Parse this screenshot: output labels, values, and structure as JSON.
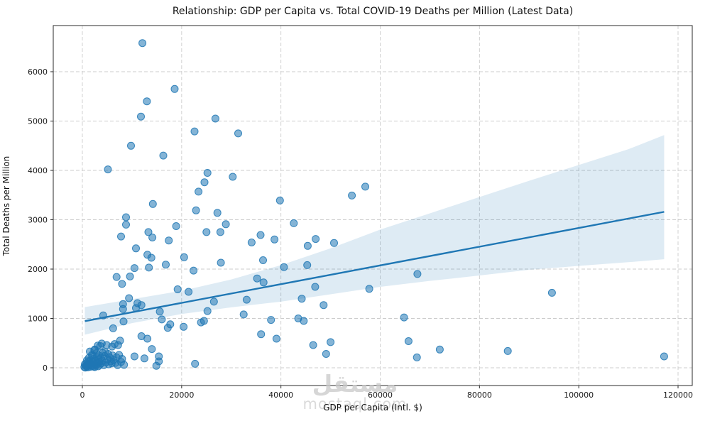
{
  "watermark": {
    "arabic": "مستقل",
    "latin": "mostaql.com"
  },
  "chart_data": {
    "type": "scatter",
    "title": "Relationship: GDP per Capita vs. Total COVID-19 Deaths per Million (Latest Data)",
    "xlabel": "GDP per Capita (Intl. $)",
    "ylabel": "Total Deaths per Million",
    "x_ticks": [
      0,
      20000,
      40000,
      60000,
      80000,
      100000,
      120000
    ],
    "y_ticks": [
      0,
      1000,
      2000,
      3000,
      4000,
      5000,
      6000
    ],
    "xlim": [
      -5900,
      122900
    ],
    "ylim": [
      -360,
      6940
    ],
    "grid": true,
    "legend": "none",
    "colors": {
      "point": "#1f77b4",
      "line": "#1f77b4",
      "band": "#1f77b4",
      "grid": "#cccccc",
      "spine": "#2b2b2b",
      "tick_text": "#1a1a1a"
    },
    "regression": {
      "line": [
        [
          500,
          945
        ],
        [
          117200,
          3160
        ]
      ],
      "band_upper": [
        [
          500,
          1230
        ],
        [
          10000,
          1390
        ],
        [
          20000,
          1560
        ],
        [
          30000,
          1790
        ],
        [
          40000,
          2080
        ],
        [
          50000,
          2420
        ],
        [
          60000,
          2800
        ],
        [
          70000,
          3130
        ],
        [
          80000,
          3460
        ],
        [
          90000,
          3790
        ],
        [
          100000,
          4110
        ],
        [
          110000,
          4430
        ],
        [
          117200,
          4715
        ]
      ],
      "band_lower": [
        [
          500,
          670
        ],
        [
          10000,
          905
        ],
        [
          20000,
          1090
        ],
        [
          30000,
          1225
        ],
        [
          40000,
          1340
        ],
        [
          50000,
          1490
        ],
        [
          60000,
          1640
        ],
        [
          70000,
          1760
        ],
        [
          80000,
          1870
        ],
        [
          90000,
          1985
        ],
        [
          100000,
          2065
        ],
        [
          110000,
          2140
        ],
        [
          117200,
          2200
        ]
      ]
    },
    "points": [
      [
        12100,
        6580
      ],
      [
        18600,
        5650
      ],
      [
        13000,
        5400
      ],
      [
        11800,
        5090
      ],
      [
        26800,
        5050
      ],
      [
        22600,
        4790
      ],
      [
        31400,
        4750
      ],
      [
        9800,
        4500
      ],
      [
        16300,
        4300
      ],
      [
        5150,
        4020
      ],
      [
        25200,
        3950
      ],
      [
        30300,
        3870
      ],
      [
        24600,
        3760
      ],
      [
        23400,
        3570
      ],
      [
        57000,
        3670
      ],
      [
        54300,
        3490
      ],
      [
        39800,
        3390
      ],
      [
        14200,
        3320
      ],
      [
        22900,
        3190
      ],
      [
        27200,
        3140
      ],
      [
        8800,
        3050
      ],
      [
        8800,
        2900
      ],
      [
        18900,
        2870
      ],
      [
        28900,
        2910
      ],
      [
        42600,
        2930
      ],
      [
        13300,
        2750
      ],
      [
        14100,
        2640
      ],
      [
        7800,
        2660
      ],
      [
        25000,
        2750
      ],
      [
        27800,
        2750
      ],
      [
        17400,
        2580
      ],
      [
        10800,
        2420
      ],
      [
        13100,
        2290
      ],
      [
        13900,
        2230
      ],
      [
        34100,
        2540
      ],
      [
        35900,
        2690
      ],
      [
        38700,
        2600
      ],
      [
        47000,
        2610
      ],
      [
        45400,
        2470
      ],
      [
        50700,
        2530
      ],
      [
        20500,
        2240
      ],
      [
        27900,
        2130
      ],
      [
        10500,
        2020
      ],
      [
        13400,
        2030
      ],
      [
        16800,
        2090
      ],
      [
        22400,
        1970
      ],
      [
        36400,
        2180
      ],
      [
        40600,
        2040
      ],
      [
        45300,
        2080
      ],
      [
        6900,
        1840
      ],
      [
        9600,
        1850
      ],
      [
        8000,
        1700
      ],
      [
        35200,
        1810
      ],
      [
        36500,
        1730
      ],
      [
        46900,
        1640
      ],
      [
        57800,
        1600
      ],
      [
        67500,
        1900
      ],
      [
        33100,
        1380
      ],
      [
        44200,
        1400
      ],
      [
        48600,
        1270
      ],
      [
        94600,
        1520
      ],
      [
        64800,
        1020
      ],
      [
        65700,
        540
      ],
      [
        72000,
        370
      ],
      [
        67400,
        210
      ],
      [
        85700,
        340
      ],
      [
        117200,
        230
      ],
      [
        19200,
        1590
      ],
      [
        21400,
        1540
      ],
      [
        26500,
        1340
      ],
      [
        25200,
        1150
      ],
      [
        24500,
        950
      ],
      [
        23900,
        920
      ],
      [
        32500,
        1080
      ],
      [
        20400,
        830
      ],
      [
        38000,
        970
      ],
      [
        36000,
        680
      ],
      [
        39100,
        590
      ],
      [
        43500,
        1000
      ],
      [
        44600,
        950
      ],
      [
        46500,
        460
      ],
      [
        50000,
        520
      ],
      [
        49100,
        280
      ],
      [
        22700,
        80
      ],
      [
        8200,
        1290
      ],
      [
        8200,
        1190
      ],
      [
        11900,
        1270
      ],
      [
        10800,
        1210
      ],
      [
        11100,
        1310
      ],
      [
        9400,
        1410
      ],
      [
        4200,
        1060
      ],
      [
        6200,
        800
      ],
      [
        15600,
        1140
      ],
      [
        16000,
        980
      ],
      [
        8300,
        940
      ],
      [
        17200,
        810
      ],
      [
        17700,
        880
      ],
      [
        11900,
        640
      ],
      [
        2500,
        370
      ],
      [
        3600,
        440
      ],
      [
        1900,
        260
      ],
      [
        4900,
        460
      ],
      [
        6500,
        480
      ],
      [
        7600,
        550
      ],
      [
        13100,
        590
      ],
      [
        14000,
        380
      ],
      [
        15400,
        130
      ],
      [
        14900,
        40
      ],
      [
        15400,
        230
      ],
      [
        8400,
        60
      ],
      [
        10500,
        230
      ],
      [
        12500,
        190
      ],
      [
        1500,
        330
      ],
      [
        2400,
        355
      ],
      [
        3100,
        450
      ],
      [
        3900,
        490
      ],
      [
        6000,
        430
      ],
      [
        7200,
        460
      ],
      [
        400,
        15
      ],
      [
        600,
        5
      ],
      [
        700,
        40
      ],
      [
        800,
        90
      ],
      [
        900,
        25
      ],
      [
        1000,
        60
      ],
      [
        1100,
        10
      ],
      [
        1200,
        130
      ],
      [
        1300,
        45
      ],
      [
        1400,
        80
      ],
      [
        1600,
        20
      ],
      [
        1700,
        150
      ],
      [
        1800,
        60
      ],
      [
        2000,
        35
      ],
      [
        2100,
        110
      ],
      [
        2200,
        180
      ],
      [
        2300,
        25
      ],
      [
        2600,
        75
      ],
      [
        2700,
        140
      ],
      [
        2800,
        45
      ],
      [
        2900,
        220
      ],
      [
        3000,
        95
      ],
      [
        3200,
        30
      ],
      [
        3300,
        170
      ],
      [
        3400,
        120
      ],
      [
        3500,
        60
      ],
      [
        3700,
        200
      ],
      [
        3800,
        90
      ],
      [
        4000,
        140
      ],
      [
        4300,
        55
      ],
      [
        4500,
        240
      ],
      [
        4700,
        110
      ],
      [
        5100,
        170
      ],
      [
        5300,
        70
      ],
      [
        5500,
        210
      ],
      [
        5700,
        130
      ],
      [
        5900,
        90
      ],
      [
        6100,
        250
      ],
      [
        6300,
        160
      ],
      [
        6700,
        100
      ],
      [
        6900,
        210
      ],
      [
        7100,
        55
      ],
      [
        7400,
        260
      ],
      [
        7800,
        120
      ],
      [
        8000,
        180
      ],
      [
        900,
        150
      ],
      [
        1300,
        200
      ],
      [
        1700,
        90
      ],
      [
        2100,
        250
      ],
      [
        2500,
        15
      ],
      [
        2900,
        300
      ],
      [
        3300,
        250
      ],
      [
        500,
        70
      ],
      [
        4100,
        300
      ],
      [
        4600,
        320
      ],
      [
        5200,
        280
      ]
    ]
  }
}
